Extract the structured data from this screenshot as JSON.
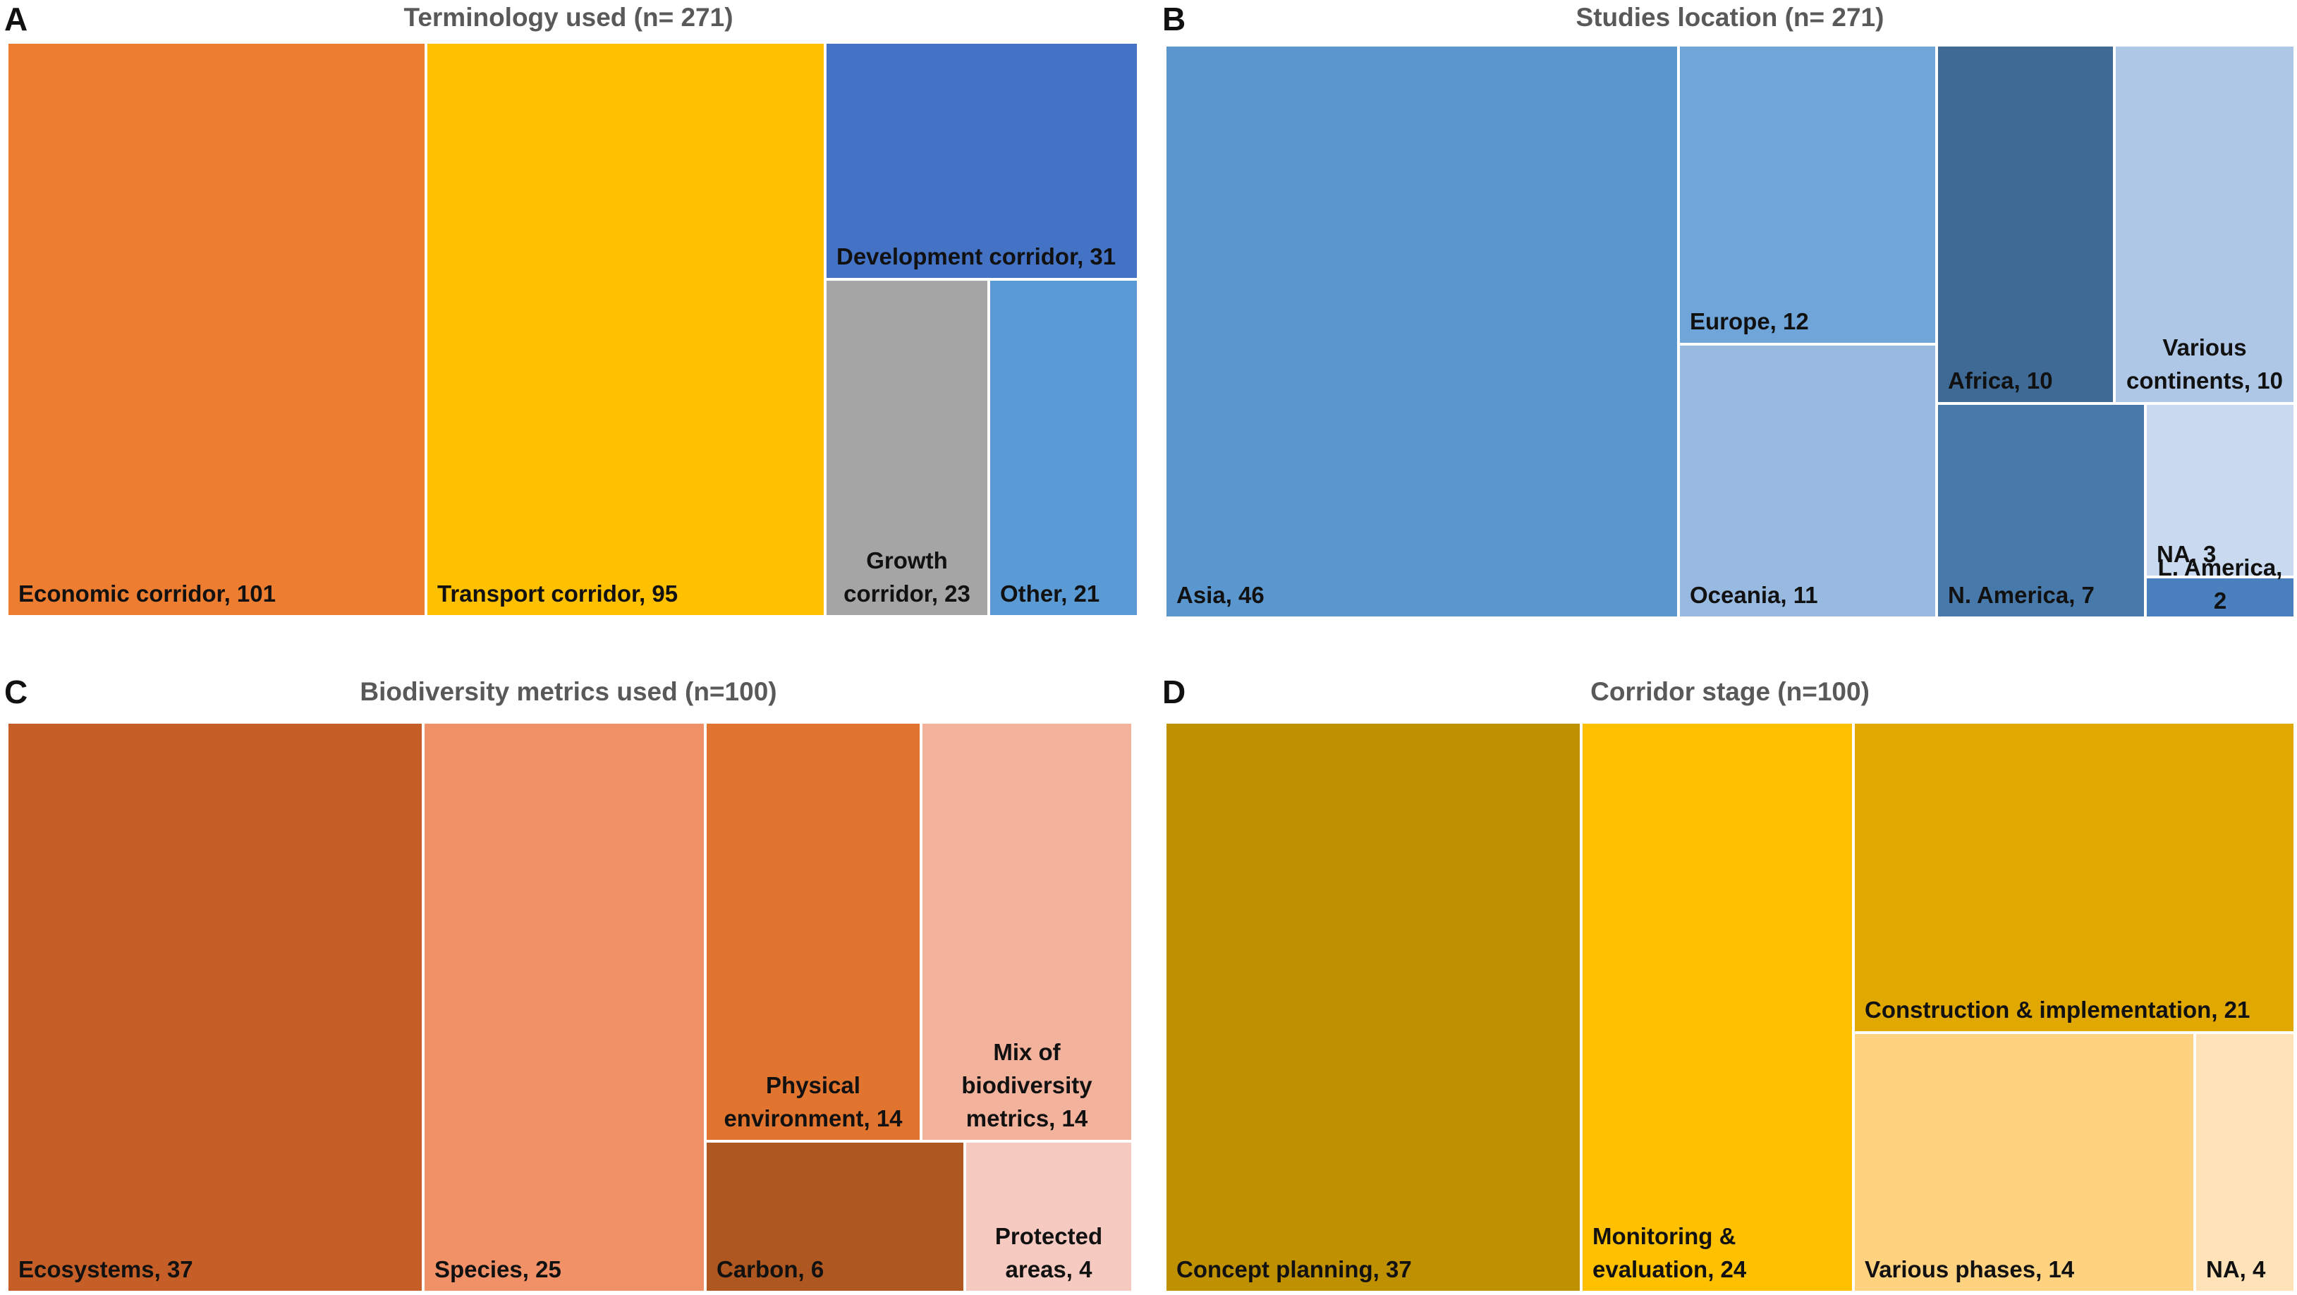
{
  "chart_data": [
    {
      "type": "treemap",
      "panel": "A",
      "title": "Terminology used (n= 271)",
      "items": [
        {
          "label": "Economic corridor, 101",
          "name": "Economic corridor",
          "value": 101,
          "color": "#ED7D31"
        },
        {
          "label": "Transport corridor, 95",
          "name": "Transport corridor",
          "value": 95,
          "color": "#FFC000"
        },
        {
          "label": "Development corridor, 31",
          "name": "Development corridor",
          "value": 31,
          "color": "#4472C4"
        },
        {
          "label": "Growth\ncorridor, 23",
          "name": "Growth corridor",
          "value": 23,
          "color": "#A5A5A5"
        },
        {
          "label": "Other, 21",
          "name": "Other",
          "value": 21,
          "color": "#5B9BD5"
        }
      ]
    },
    {
      "type": "treemap",
      "panel": "B",
      "title": "Studies location (n= 271)",
      "items": [
        {
          "label": "Asia, 46",
          "name": "Asia",
          "value": 46,
          "color": "#5B97CF"
        },
        {
          "label": "Europe, 12",
          "name": "Europe",
          "value": 12,
          "color": "#70A5DA"
        },
        {
          "label": "Oceania, 11",
          "name": "Oceania",
          "value": 11,
          "color": "#98B9E0"
        },
        {
          "label": "Africa, 10",
          "name": "Africa",
          "value": 10,
          "color": "#3F6A96"
        },
        {
          "label": "Various\ncontinents, 10",
          "name": "Various continents",
          "value": 10,
          "color": "#AFC7E6"
        },
        {
          "label": "N. America, 7",
          "name": "N. America",
          "value": 7,
          "color": "#4779AA"
        },
        {
          "label": "NA, 3",
          "name": "NA",
          "value": 3,
          "color": "#C9D9EF"
        },
        {
          "label": "L. America,\n2",
          "name": "L. America",
          "value": 2,
          "color": "#4A80BE"
        }
      ]
    },
    {
      "type": "treemap",
      "panel": "C",
      "title": "Biodiversity metrics used (n=100)",
      "items": [
        {
          "label": "Ecosystems, 37",
          "name": "Ecosystems",
          "value": 37,
          "color": "#C65F27"
        },
        {
          "label": "Species, 25",
          "name": "Species",
          "value": 25,
          "color": "#F09168"
        },
        {
          "label": "Physical\nenvironment, 14",
          "name": "Physical environment",
          "value": 14,
          "color": "#E1752F"
        },
        {
          "label": "Mix of\nbiodiversity\nmetrics, 14",
          "name": "Mix of biodiversity metrics",
          "value": 14,
          "color": "#F2B29C"
        },
        {
          "label": "Carbon, 6",
          "name": "Carbon",
          "value": 6,
          "color": "#AE5720"
        },
        {
          "label": "Protected\nareas, 4",
          "name": "Protected areas",
          "value": 4,
          "color": "#F6CAC0"
        }
      ]
    },
    {
      "type": "treemap",
      "panel": "D",
      "title": "Corridor stage (n=100)",
      "items": [
        {
          "label": "Concept planning, 37",
          "name": "Concept planning",
          "value": 37,
          "color": "#BF9000"
        },
        {
          "label": "Monitoring &\nevaluation, 24",
          "name": "Monitoring & evaluation",
          "value": 24,
          "color": "#FFC000"
        },
        {
          "label": "Construction & implementation, 21",
          "name": "Construction & implementation",
          "value": 21,
          "color": "#E0A800"
        },
        {
          "label": "Various phases, 14",
          "name": "Various phases",
          "value": 14,
          "color": "#FFD280"
        },
        {
          "label": "NA, 4",
          "name": "NA",
          "value": 4,
          "color": "#FFE2B8"
        }
      ]
    }
  ]
}
